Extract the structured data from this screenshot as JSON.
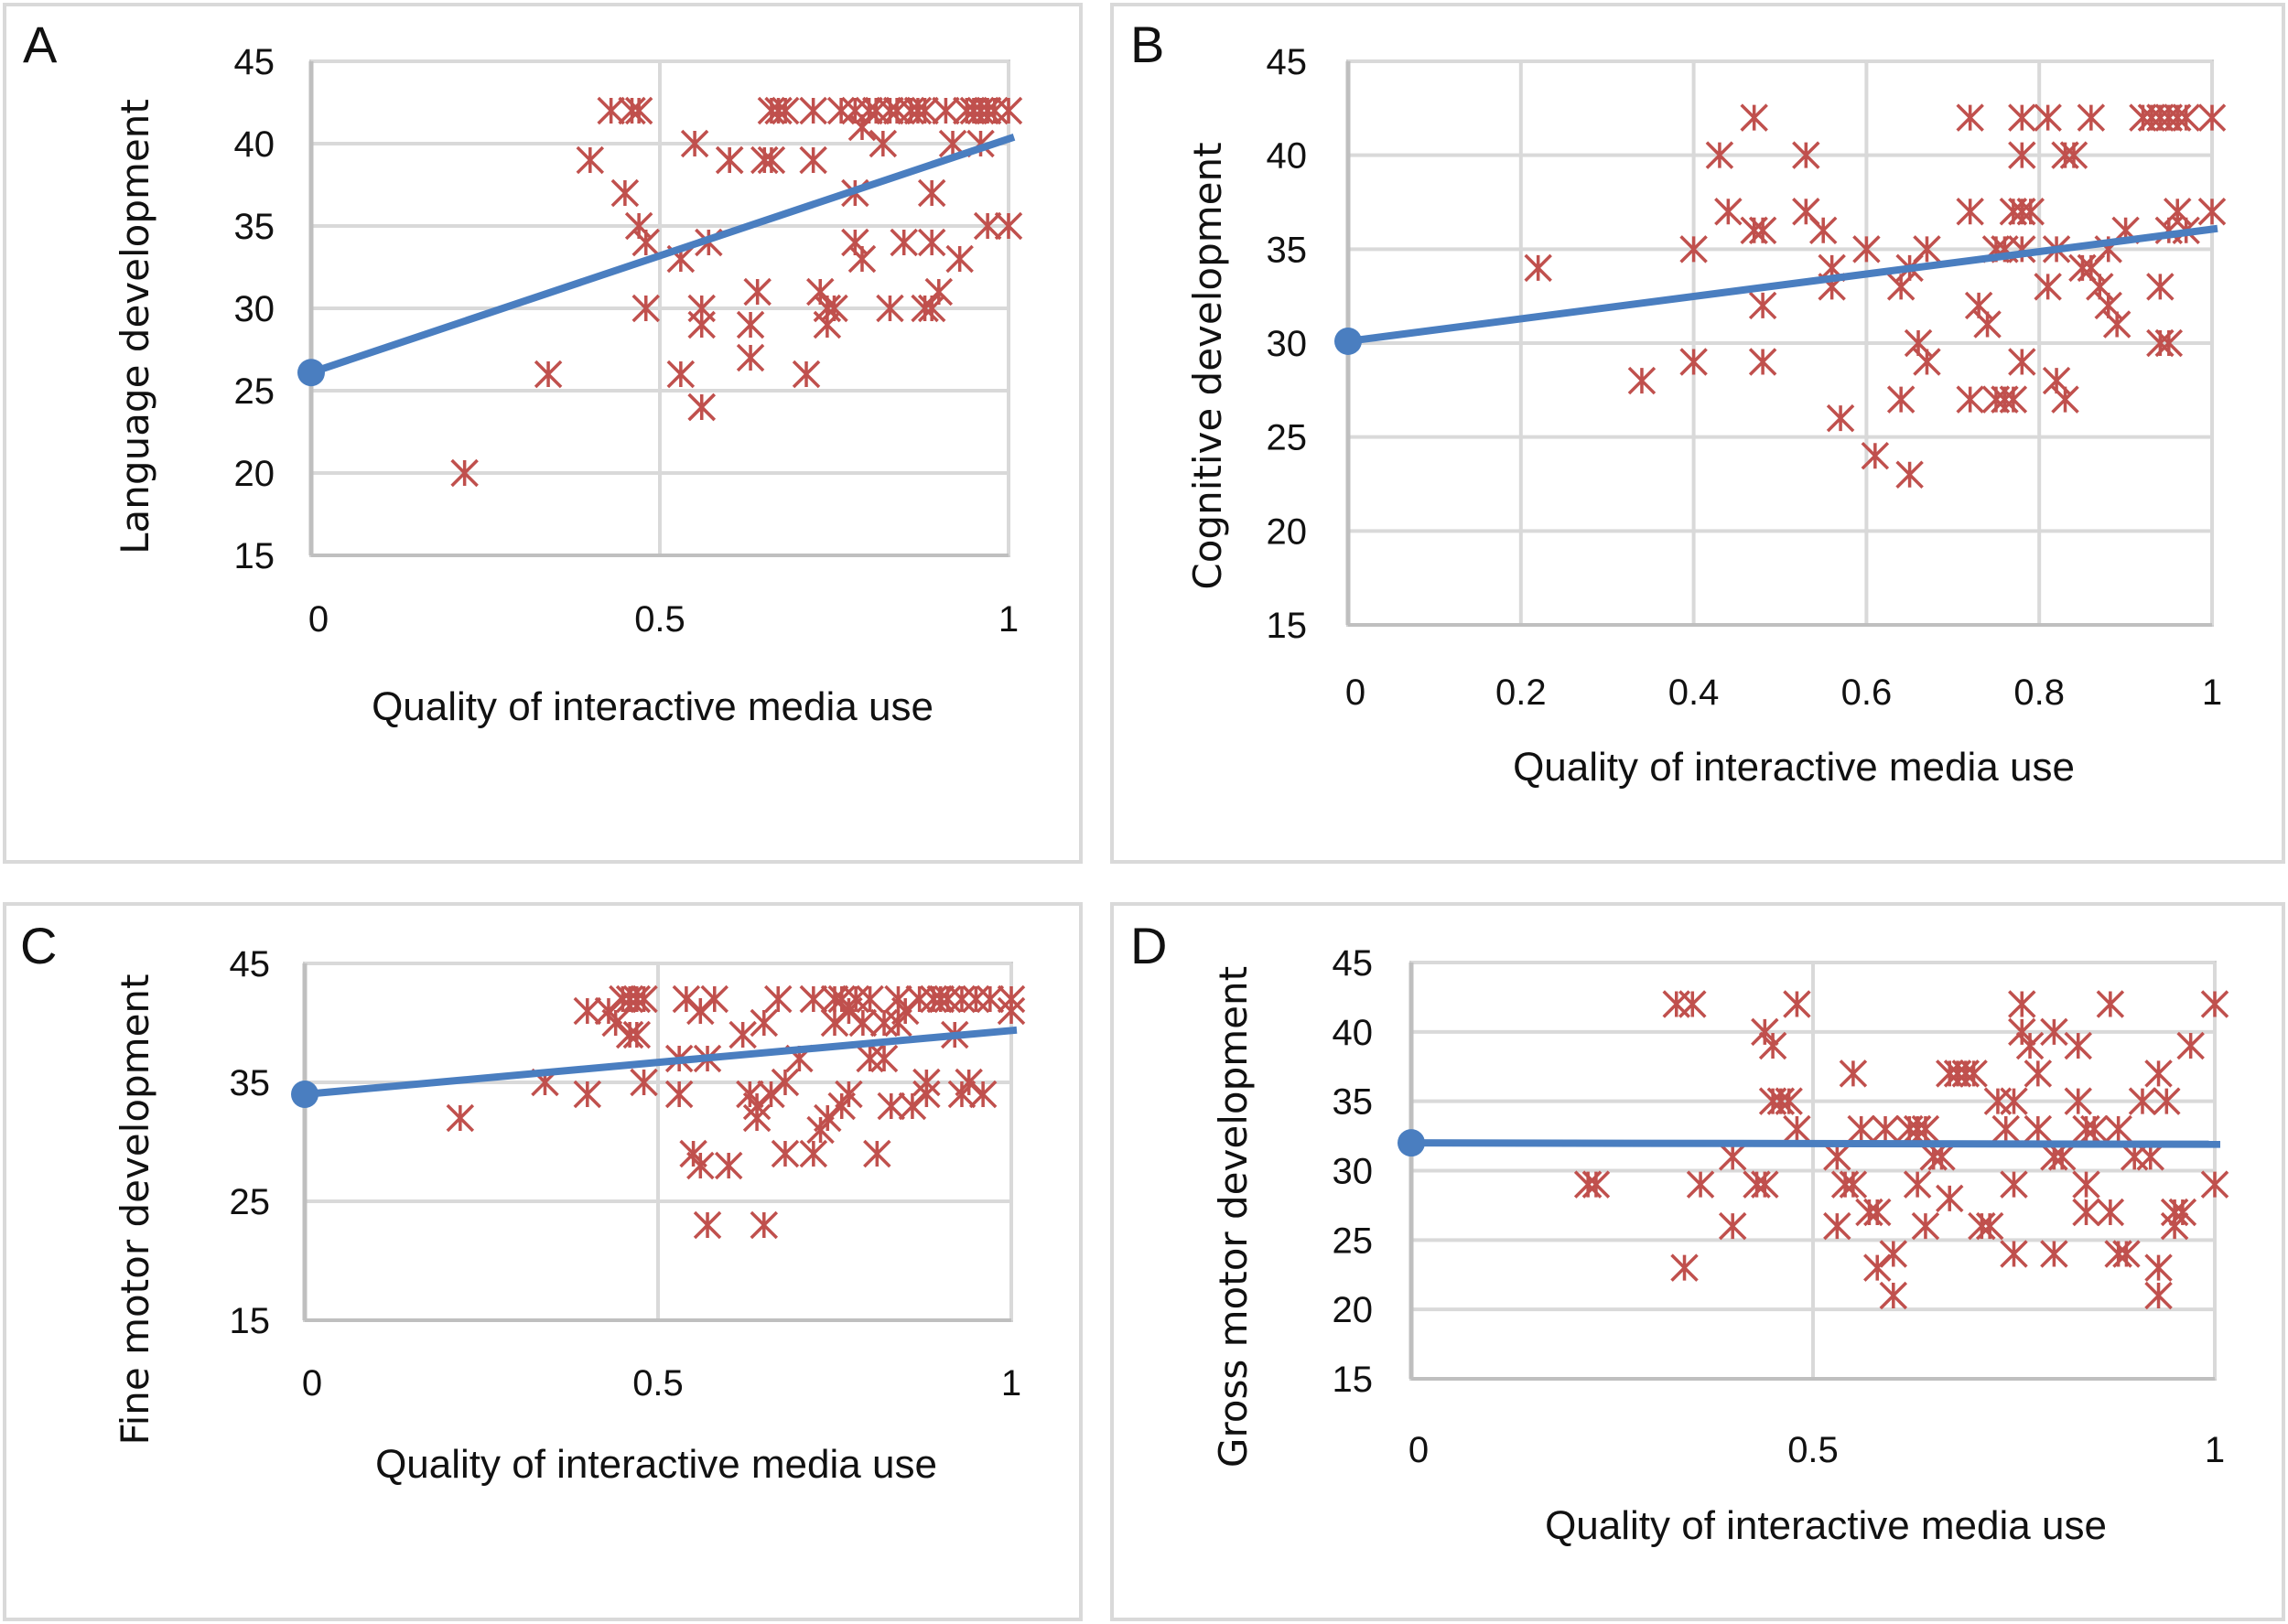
{
  "figure": {
    "panels": [
      "A",
      "B",
      "C",
      "D"
    ]
  },
  "colors": {
    "scatter": "#c0504d",
    "trend": "#4a7ec0",
    "grid": "#d9d9d9",
    "frame": "#d9d9d9"
  },
  "chart_data": [
    {
      "panel": "A",
      "type": "scatter",
      "marker": "asterisk",
      "xlabel": "Quality of interactive media use",
      "ylabel": "Language development",
      "xlim": [
        0,
        1
      ],
      "ylim": [
        15,
        45
      ],
      "xticks": [
        0,
        0.5,
        1
      ],
      "xtick_labels": [
        "0",
        "0.5",
        "1"
      ],
      "yticks": [
        15,
        20,
        25,
        30,
        35,
        40,
        45
      ],
      "ytick_labels": [
        "15",
        "20",
        "25",
        "30",
        "35",
        "40",
        "45"
      ],
      "grid": true,
      "trendline": {
        "x": [
          0,
          1
        ],
        "y": [
          26.1,
          40.4
        ],
        "start_marker": true
      },
      "points": [
        [
          0.22,
          20
        ],
        [
          0.34,
          26
        ],
        [
          0.4,
          39
        ],
        [
          0.43,
          42
        ],
        [
          0.45,
          37
        ],
        [
          0.46,
          42
        ],
        [
          0.47,
          42
        ],
        [
          0.47,
          35
        ],
        [
          0.48,
          34
        ],
        [
          0.48,
          30
        ],
        [
          0.53,
          26
        ],
        [
          0.53,
          33
        ],
        [
          0.55,
          40
        ],
        [
          0.56,
          30
        ],
        [
          0.56,
          29
        ],
        [
          0.56,
          24
        ],
        [
          0.56,
          24
        ],
        [
          0.57,
          34
        ],
        [
          0.6,
          39
        ],
        [
          0.6,
          39
        ],
        [
          0.63,
          29
        ],
        [
          0.63,
          27
        ],
        [
          0.64,
          31
        ],
        [
          0.65,
          39
        ],
        [
          0.66,
          39
        ],
        [
          0.66,
          42
        ],
        [
          0.67,
          42
        ],
        [
          0.68,
          42
        ],
        [
          0.71,
          26
        ],
        [
          0.72,
          42
        ],
        [
          0.72,
          39
        ],
        [
          0.73,
          31
        ],
        [
          0.74,
          30
        ],
        [
          0.74,
          29
        ],
        [
          0.75,
          30
        ],
        [
          0.76,
          42
        ],
        [
          0.78,
          37
        ],
        [
          0.78,
          42
        ],
        [
          0.78,
          34
        ],
        [
          0.79,
          41
        ],
        [
          0.79,
          33
        ],
        [
          0.8,
          42
        ],
        [
          0.81,
          42
        ],
        [
          0.82,
          40
        ],
        [
          0.83,
          42
        ],
        [
          0.83,
          30
        ],
        [
          0.84,
          42
        ],
        [
          0.85,
          34
        ],
        [
          0.86,
          42
        ],
        [
          0.87,
          42
        ],
        [
          0.88,
          30
        ],
        [
          0.88,
          42
        ],
        [
          0.89,
          34
        ],
        [
          0.89,
          37
        ],
        [
          0.89,
          30
        ],
        [
          0.9,
          31
        ],
        [
          0.91,
          42
        ],
        [
          0.92,
          40
        ],
        [
          0.93,
          33
        ],
        [
          0.94,
          42
        ],
        [
          0.95,
          42
        ],
        [
          0.96,
          42
        ],
        [
          0.96,
          40
        ],
        [
          0.97,
          42
        ],
        [
          0.97,
          35
        ],
        [
          0.98,
          42
        ],
        [
          1.0,
          42
        ],
        [
          1.0,
          35
        ]
      ]
    },
    {
      "panel": "B",
      "type": "scatter",
      "marker": "asterisk",
      "xlabel": "Quality of interactive media use",
      "ylabel": "Cognitive development",
      "xlim": [
        0,
        1
      ],
      "ylim": [
        15,
        45
      ],
      "xticks": [
        0,
        0.2,
        0.4,
        0.6,
        0.8,
        1
      ],
      "xtick_labels": [
        "0",
        "0.2",
        "0.4",
        "0.6",
        "0.8",
        "1"
      ],
      "yticks": [
        15,
        20,
        25,
        30,
        35,
        40,
        45
      ],
      "ytick_labels": [
        "15",
        "20",
        "25",
        "30",
        "35",
        "40",
        "45"
      ],
      "grid": true,
      "trendline": {
        "x": [
          0,
          1
        ],
        "y": [
          30.1,
          36.1
        ],
        "start_marker": true
      },
      "points": [
        [
          0.22,
          34
        ],
        [
          0.34,
          28
        ],
        [
          0.4,
          35
        ],
        [
          0.4,
          29
        ],
        [
          0.43,
          40
        ],
        [
          0.44,
          37
        ],
        [
          0.47,
          42
        ],
        [
          0.47,
          36
        ],
        [
          0.48,
          36
        ],
        [
          0.48,
          32
        ],
        [
          0.48,
          29
        ],
        [
          0.53,
          40
        ],
        [
          0.53,
          37
        ],
        [
          0.55,
          36
        ],
        [
          0.56,
          34
        ],
        [
          0.56,
          33
        ],
        [
          0.57,
          26
        ],
        [
          0.6,
          35
        ],
        [
          0.61,
          24
        ],
        [
          0.64,
          33
        ],
        [
          0.64,
          27
        ],
        [
          0.65,
          34
        ],
        [
          0.65,
          23
        ],
        [
          0.66,
          30
        ],
        [
          0.67,
          29
        ],
        [
          0.67,
          35
        ],
        [
          0.72,
          42
        ],
        [
          0.72,
          37
        ],
        [
          0.72,
          27
        ],
        [
          0.73,
          32
        ],
        [
          0.74,
          31
        ],
        [
          0.75,
          35
        ],
        [
          0.75,
          27
        ],
        [
          0.76,
          27
        ],
        [
          0.76,
          35
        ],
        [
          0.77,
          37
        ],
        [
          0.77,
          27
        ],
        [
          0.78,
          42
        ],
        [
          0.78,
          40
        ],
        [
          0.78,
          37
        ],
        [
          0.78,
          35
        ],
        [
          0.78,
          29
        ],
        [
          0.79,
          37
        ],
        [
          0.81,
          42
        ],
        [
          0.81,
          33
        ],
        [
          0.82,
          35
        ],
        [
          0.82,
          28
        ],
        [
          0.83,
          40
        ],
        [
          0.83,
          27
        ],
        [
          0.84,
          40
        ],
        [
          0.85,
          34
        ],
        [
          0.86,
          42
        ],
        [
          0.86,
          34
        ],
        [
          0.87,
          33
        ],
        [
          0.88,
          32
        ],
        [
          0.88,
          35
        ],
        [
          0.89,
          31
        ],
        [
          0.9,
          36
        ],
        [
          0.92,
          42
        ],
        [
          0.93,
          42
        ],
        [
          0.94,
          42
        ],
        [
          0.94,
          33
        ],
        [
          0.94,
          30
        ],
        [
          0.95,
          42
        ],
        [
          0.95,
          36
        ],
        [
          0.95,
          30
        ],
        [
          0.96,
          42
        ],
        [
          0.96,
          37
        ],
        [
          0.97,
          42
        ],
        [
          0.97,
          36
        ],
        [
          1.0,
          42
        ],
        [
          1.0,
          37
        ]
      ]
    },
    {
      "panel": "C",
      "type": "scatter",
      "marker": "asterisk",
      "xlabel": "Quality of interactive media use",
      "ylabel": "Fine motor development",
      "xlim": [
        0,
        1
      ],
      "ylim": [
        15,
        45
      ],
      "xticks": [
        0,
        0.5,
        1
      ],
      "xtick_labels": [
        "0",
        "0.5",
        "1"
      ],
      "yticks": [
        15,
        25,
        35,
        45
      ],
      "ytick_labels": [
        "15",
        "25",
        "35",
        "45"
      ],
      "grid": true,
      "trendline": {
        "x": [
          0,
          1
        ],
        "y": [
          34.0,
          39.4
        ],
        "start_marker": true
      },
      "points": [
        [
          0.22,
          32
        ],
        [
          0.34,
          35
        ],
        [
          0.4,
          34
        ],
        [
          0.4,
          41
        ],
        [
          0.43,
          41
        ],
        [
          0.44,
          40
        ],
        [
          0.45,
          42
        ],
        [
          0.46,
          42
        ],
        [
          0.46,
          39
        ],
        [
          0.47,
          42
        ],
        [
          0.47,
          39
        ],
        [
          0.48,
          42
        ],
        [
          0.48,
          35
        ],
        [
          0.53,
          37
        ],
        [
          0.53,
          34
        ],
        [
          0.54,
          42
        ],
        [
          0.55,
          29
        ],
        [
          0.56,
          28
        ],
        [
          0.56,
          41
        ],
        [
          0.57,
          37
        ],
        [
          0.57,
          23
        ],
        [
          0.58,
          42
        ],
        [
          0.6,
          28
        ],
        [
          0.62,
          39
        ],
        [
          0.63,
          34
        ],
        [
          0.64,
          32
        ],
        [
          0.64,
          33
        ],
        [
          0.65,
          23
        ],
        [
          0.65,
          40
        ],
        [
          0.66,
          34
        ],
        [
          0.67,
          42
        ],
        [
          0.68,
          35
        ],
        [
          0.68,
          29
        ],
        [
          0.7,
          37
        ],
        [
          0.72,
          29
        ],
        [
          0.72,
          42
        ],
        [
          0.73,
          31
        ],
        [
          0.74,
          32
        ],
        [
          0.75,
          42
        ],
        [
          0.75,
          40
        ],
        [
          0.76,
          42
        ],
        [
          0.76,
          33
        ],
        [
          0.77,
          34
        ],
        [
          0.77,
          41
        ],
        [
          0.78,
          42
        ],
        [
          0.79,
          40
        ],
        [
          0.8,
          42
        ],
        [
          0.8,
          37
        ],
        [
          0.81,
          29
        ],
        [
          0.82,
          40
        ],
        [
          0.82,
          37
        ],
        [
          0.83,
          33
        ],
        [
          0.84,
          42
        ],
        [
          0.84,
          40
        ],
        [
          0.85,
          41
        ],
        [
          0.86,
          33
        ],
        [
          0.87,
          42
        ],
        [
          0.88,
          35
        ],
        [
          0.88,
          34
        ],
        [
          0.89,
          42
        ],
        [
          0.9,
          42
        ],
        [
          0.91,
          42
        ],
        [
          0.92,
          39
        ],
        [
          0.93,
          34
        ],
        [
          0.93,
          42
        ],
        [
          0.94,
          35
        ],
        [
          0.95,
          42
        ],
        [
          0.96,
          34
        ],
        [
          0.97,
          42
        ],
        [
          1.0,
          42
        ],
        [
          1.0,
          41
        ]
      ]
    },
    {
      "panel": "D",
      "type": "scatter",
      "marker": "asterisk",
      "xlabel": "Quality of interactive media use",
      "ylabel": "Gross motor development",
      "xlim": [
        0,
        1
      ],
      "ylim": [
        15,
        45
      ],
      "xticks": [
        0,
        0.5,
        1
      ],
      "xtick_labels": [
        "0",
        "0.5",
        "1"
      ],
      "yticks": [
        15,
        20,
        25,
        30,
        35,
        40,
        45
      ],
      "ytick_labels": [
        "15",
        "20",
        "25",
        "30",
        "35",
        "40",
        "45"
      ],
      "grid": true,
      "trendline": {
        "x": [
          0,
          1
        ],
        "y": [
          32.0,
          31.9
        ],
        "start_marker": true
      },
      "points": [
        [
          0.22,
          29
        ],
        [
          0.23,
          29
        ],
        [
          0.33,
          42
        ],
        [
          0.34,
          23
        ],
        [
          0.35,
          42
        ],
        [
          0.36,
          29
        ],
        [
          0.4,
          31
        ],
        [
          0.4,
          26
        ],
        [
          0.43,
          29
        ],
        [
          0.44,
          29
        ],
        [
          0.44,
          40
        ],
        [
          0.45,
          39
        ],
        [
          0.45,
          35
        ],
        [
          0.46,
          35
        ],
        [
          0.47,
          35
        ],
        [
          0.48,
          33
        ],
        [
          0.48,
          42
        ],
        [
          0.53,
          31
        ],
        [
          0.53,
          26
        ],
        [
          0.54,
          29
        ],
        [
          0.55,
          29
        ],
        [
          0.55,
          37
        ],
        [
          0.56,
          33
        ],
        [
          0.57,
          27
        ],
        [
          0.58,
          27
        ],
        [
          0.58,
          23
        ],
        [
          0.59,
          33
        ],
        [
          0.6,
          24
        ],
        [
          0.6,
          21
        ],
        [
          0.62,
          33
        ],
        [
          0.63,
          29
        ],
        [
          0.63,
          33
        ],
        [
          0.64,
          26
        ],
        [
          0.64,
          33
        ],
        [
          0.65,
          31
        ],
        [
          0.66,
          31
        ],
        [
          0.67,
          28
        ],
        [
          0.67,
          37
        ],
        [
          0.68,
          37
        ],
        [
          0.69,
          37
        ],
        [
          0.7,
          37
        ],
        [
          0.71,
          26
        ],
        [
          0.72,
          26
        ],
        [
          0.73,
          35
        ],
        [
          0.74,
          33
        ],
        [
          0.75,
          29
        ],
        [
          0.75,
          35
        ],
        [
          0.75,
          24
        ],
        [
          0.76,
          42
        ],
        [
          0.76,
          40
        ],
        [
          0.77,
          39
        ],
        [
          0.78,
          37
        ],
        [
          0.78,
          33
        ],
        [
          0.8,
          31
        ],
        [
          0.8,
          24
        ],
        [
          0.8,
          40
        ],
        [
          0.81,
          31
        ],
        [
          0.83,
          39
        ],
        [
          0.83,
          35
        ],
        [
          0.84,
          29
        ],
        [
          0.84,
          27
        ],
        [
          0.84,
          33
        ],
        [
          0.85,
          33
        ],
        [
          0.87,
          42
        ],
        [
          0.87,
          27
        ],
        [
          0.88,
          33
        ],
        [
          0.88,
          24
        ],
        [
          0.89,
          24
        ],
        [
          0.9,
          31
        ],
        [
          0.91,
          35
        ],
        [
          0.92,
          31
        ],
        [
          0.93,
          37
        ],
        [
          0.93,
          23
        ],
        [
          0.93,
          21
        ],
        [
          0.94,
          35
        ],
        [
          0.95,
          27
        ],
        [
          0.95,
          26
        ],
        [
          0.96,
          27
        ],
        [
          0.97,
          39
        ],
        [
          1.0,
          42
        ],
        [
          1.0,
          29
        ]
      ]
    }
  ]
}
